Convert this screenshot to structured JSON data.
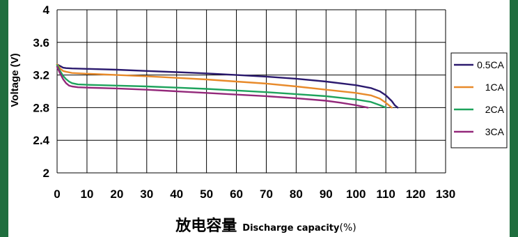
{
  "chart_data": {
    "type": "line",
    "title": "",
    "ylabel": "Voltage (V)",
    "xlabel": {
      "cn": "放电容量",
      "en": "Discharge capacity",
      "unit": "(%)"
    },
    "xlim": [
      0,
      130
    ],
    "ylim": [
      2,
      4
    ],
    "x_ticks": [
      0,
      10,
      20,
      30,
      40,
      50,
      60,
      70,
      80,
      90,
      100,
      110,
      120,
      130
    ],
    "y_ticks": [
      2,
      2.4,
      2.8,
      3.2,
      3.6,
      4
    ],
    "y_tick_labels": [
      "2",
      "2.4",
      "2.8",
      "3.2",
      "3.6",
      "4"
    ],
    "grid": true,
    "legend_position": "right",
    "series": [
      {
        "name": "0.5CA",
        "color": "#2b1a6e",
        "points": [
          [
            0,
            3.33
          ],
          [
            1,
            3.31
          ],
          [
            2,
            3.29
          ],
          [
            3,
            3.285
          ],
          [
            5,
            3.28
          ],
          [
            10,
            3.275
          ],
          [
            20,
            3.265
          ],
          [
            30,
            3.25
          ],
          [
            40,
            3.235
          ],
          [
            50,
            3.22
          ],
          [
            60,
            3.2
          ],
          [
            70,
            3.18
          ],
          [
            80,
            3.155
          ],
          [
            90,
            3.12
          ],
          [
            100,
            3.075
          ],
          [
            105,
            3.04
          ],
          [
            108,
            3.0
          ],
          [
            110,
            2.95
          ],
          [
            112,
            2.88
          ],
          [
            113,
            2.83
          ],
          [
            114,
            2.8
          ]
        ]
      },
      {
        "name": "1CA",
        "color": "#e88a2a",
        "points": [
          [
            0,
            3.33
          ],
          [
            1,
            3.28
          ],
          [
            2,
            3.25
          ],
          [
            3,
            3.24
          ],
          [
            5,
            3.225
          ],
          [
            10,
            3.215
          ],
          [
            20,
            3.2
          ],
          [
            30,
            3.185
          ],
          [
            40,
            3.165
          ],
          [
            50,
            3.145
          ],
          [
            60,
            3.12
          ],
          [
            70,
            3.095
          ],
          [
            80,
            3.06
          ],
          [
            90,
            3.02
          ],
          [
            100,
            2.98
          ],
          [
            105,
            2.95
          ],
          [
            108,
            2.91
          ],
          [
            110,
            2.86
          ],
          [
            111,
            2.83
          ],
          [
            112,
            2.8
          ]
        ]
      },
      {
        "name": "2CA",
        "color": "#1ea35c",
        "points": [
          [
            0,
            3.32
          ],
          [
            1,
            3.25
          ],
          [
            2,
            3.19
          ],
          [
            3,
            3.15
          ],
          [
            4,
            3.12
          ],
          [
            5,
            3.1
          ],
          [
            7,
            3.085
          ],
          [
            10,
            3.08
          ],
          [
            20,
            3.07
          ],
          [
            30,
            3.06
          ],
          [
            40,
            3.045
          ],
          [
            50,
            3.03
          ],
          [
            60,
            3.01
          ],
          [
            70,
            2.99
          ],
          [
            80,
            2.965
          ],
          [
            90,
            2.94
          ],
          [
            100,
            2.9
          ],
          [
            105,
            2.87
          ],
          [
            108,
            2.83
          ],
          [
            110,
            2.8
          ]
        ]
      },
      {
        "name": "3CA",
        "color": "#93287a",
        "points": [
          [
            0,
            3.3
          ],
          [
            1,
            3.22
          ],
          [
            2,
            3.15
          ],
          [
            3,
            3.1
          ],
          [
            4,
            3.07
          ],
          [
            5,
            3.06
          ],
          [
            7,
            3.05
          ],
          [
            10,
            3.045
          ],
          [
            20,
            3.035
          ],
          [
            30,
            3.02
          ],
          [
            40,
            3.0
          ],
          [
            50,
            2.98
          ],
          [
            60,
            2.96
          ],
          [
            70,
            2.94
          ],
          [
            80,
            2.915
          ],
          [
            90,
            2.885
          ],
          [
            95,
            2.86
          ],
          [
            100,
            2.83
          ],
          [
            104,
            2.8
          ]
        ]
      }
    ]
  }
}
